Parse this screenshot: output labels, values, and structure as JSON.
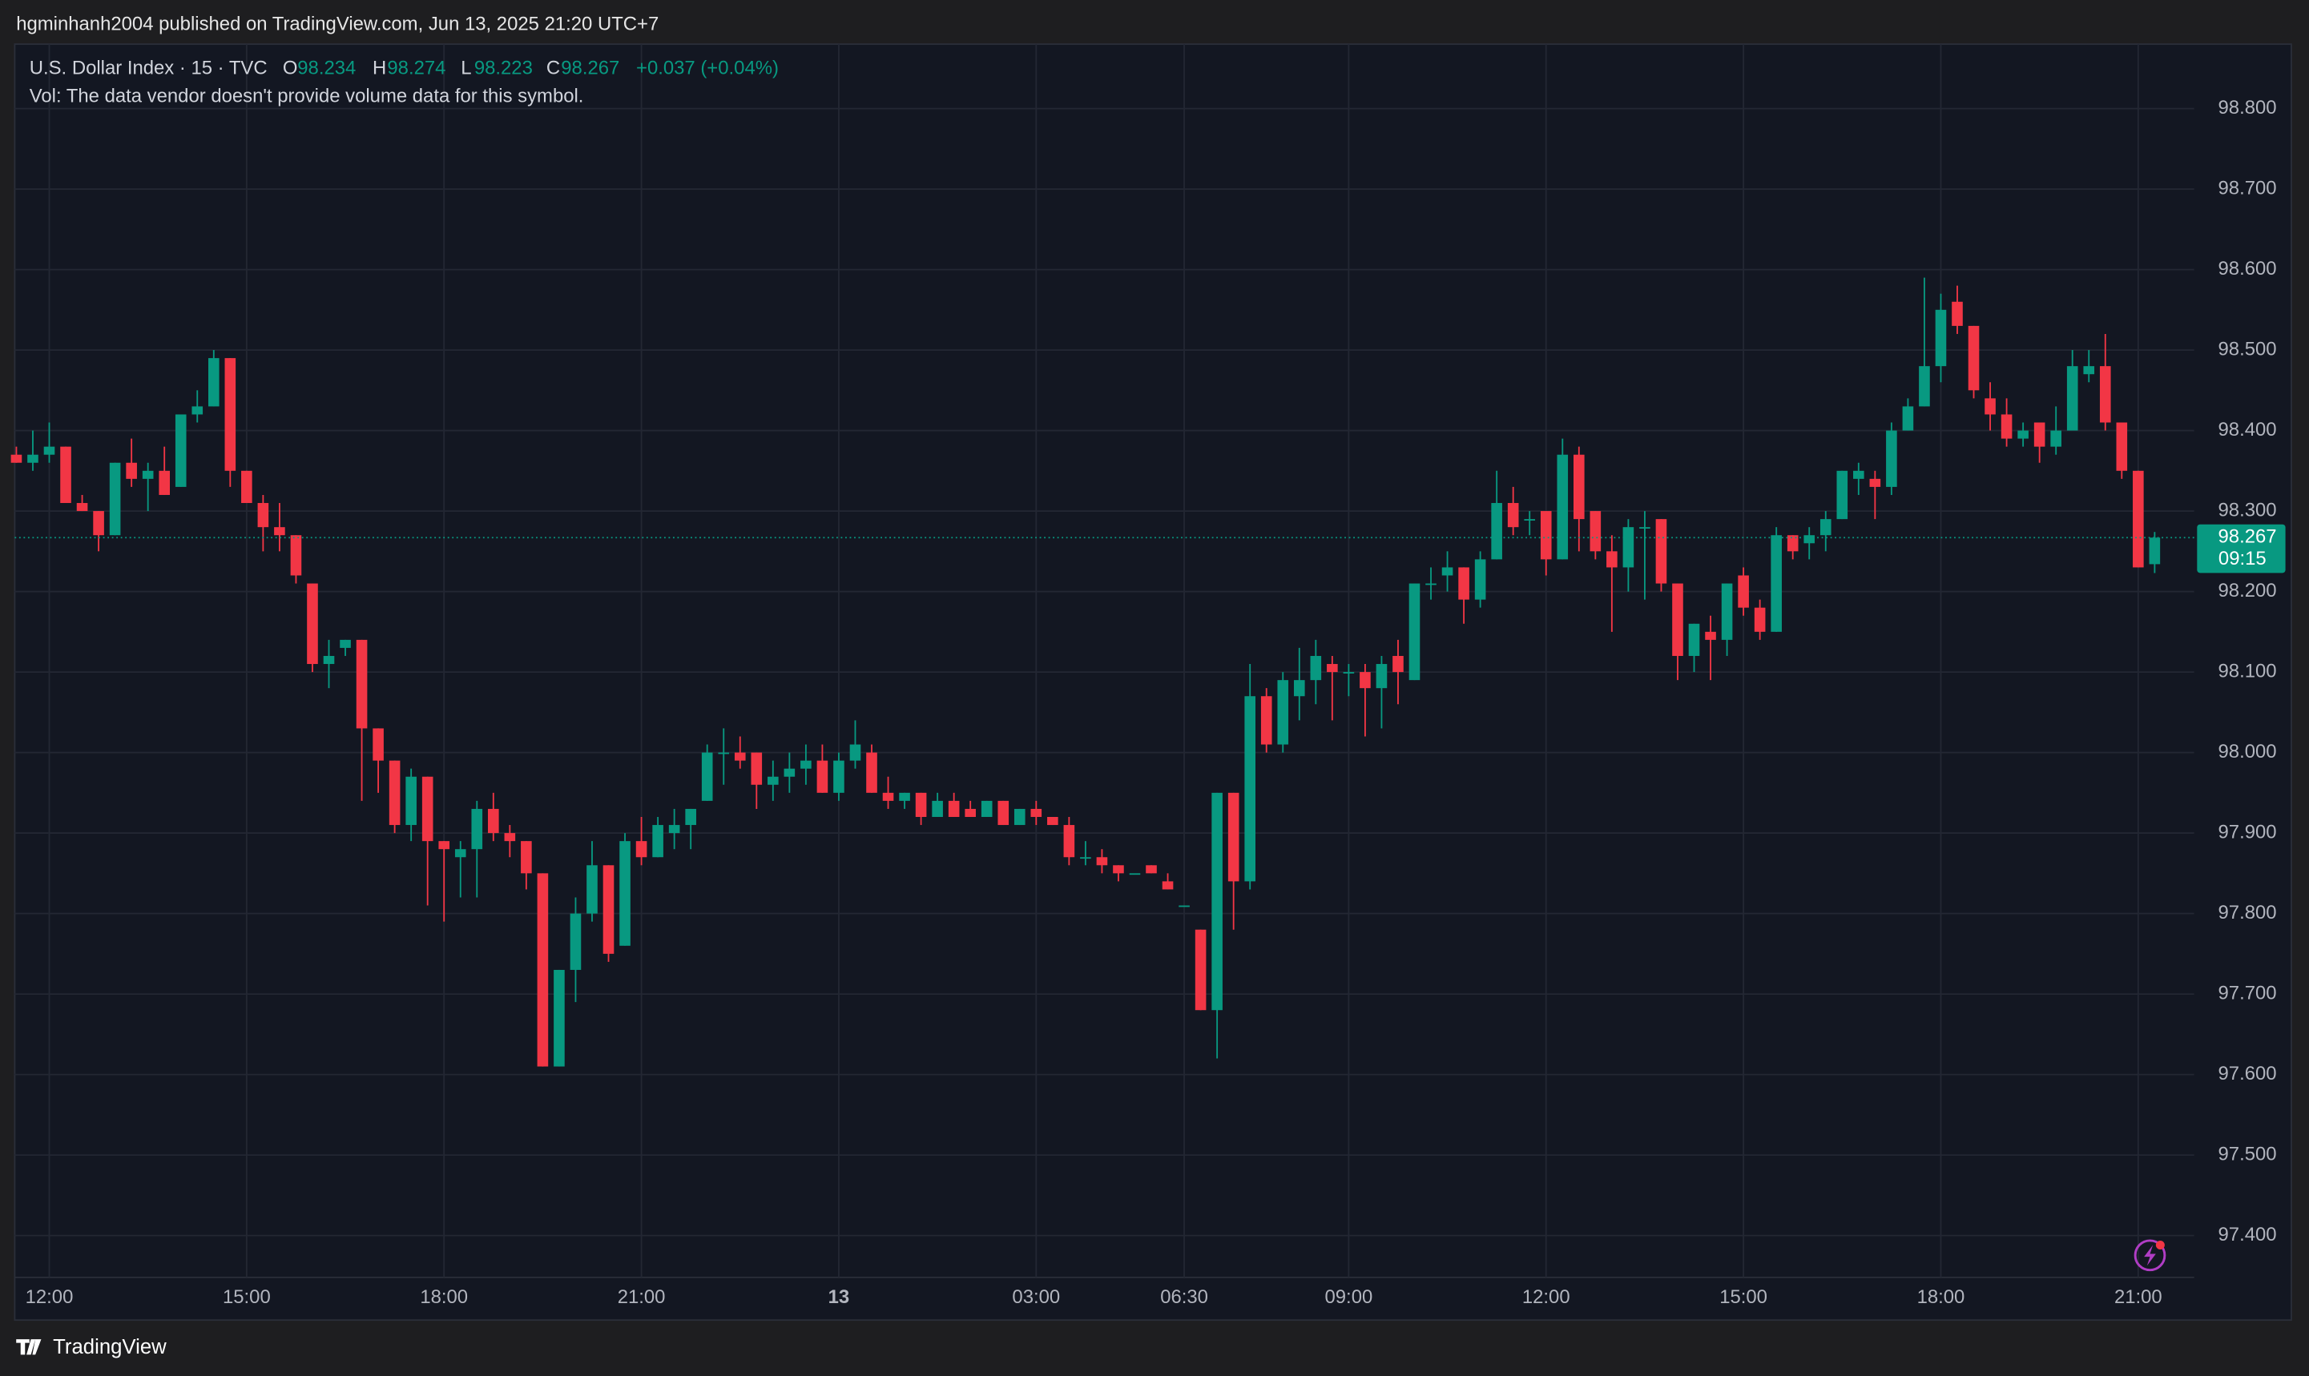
{
  "header": {
    "published": "hgminhanh2004 published on TradingView.com, Jun 13, 2025 21:20 UTC+7"
  },
  "footer": {
    "brand": "TradingView"
  },
  "chart_data": {
    "type": "candlestick",
    "title": "U.S. Dollar Index · 15 · TVC",
    "legend": [
      {
        "key": "O",
        "value": "98.234"
      },
      {
        "key": "H",
        "value": "98.274"
      },
      {
        "key": "L",
        "value": "98.223"
      },
      {
        "key": "C",
        "value": "98.267"
      }
    ],
    "change": "+0.037 (+0.04%)",
    "volume_note": "Vol: The data vendor doesn't provide volume data for this symbol.",
    "up_color": "#089981",
    "down_color": "#f23645",
    "open": [
      98.37,
      98.36,
      98.37,
      98.38,
      98.31,
      98.3,
      98.27,
      98.36,
      98.34,
      98.35,
      98.33,
      98.42,
      98.43,
      98.49,
      98.35,
      98.31,
      98.28,
      98.27,
      98.21,
      98.11,
      98.13,
      98.14,
      98.03,
      97.99,
      97.91,
      97.97,
      97.89,
      97.87,
      97.88,
      97.93,
      97.9,
      97.89,
      97.85,
      97.61,
      97.73,
      97.8,
      97.86,
      97.76,
      97.89,
      97.87,
      97.9,
      97.91,
      97.94,
      98.0,
      98.0,
      98.0,
      97.96,
      97.97,
      97.98,
      97.99,
      97.95,
      97.99,
      98.0,
      97.95,
      97.94,
      97.95,
      97.92,
      97.94,
      97.93,
      97.92,
      97.94,
      97.91,
      97.93,
      97.92,
      97.91,
      97.87,
      97.87,
      97.86,
      97.85,
      97.86,
      97.84,
      97.81,
      97.78,
      97.68,
      97.95,
      97.84,
      98.07,
      98.01,
      98.07,
      98.09,
      98.11,
      98.1,
      98.1,
      98.08,
      98.12,
      98.09,
      98.21,
      98.22,
      98.23,
      98.19,
      98.24,
      98.31,
      98.29,
      98.3,
      98.24,
      98.37,
      98.3,
      98.25,
      98.23,
      98.28,
      98.29,
      98.21,
      98.12,
      98.15,
      98.14,
      98.22,
      98.18,
      98.15,
      98.27,
      98.26,
      98.27,
      98.29,
      98.34,
      98.34,
      98.33,
      98.4,
      98.43,
      98.48,
      98.56,
      98.53,
      98.44,
      98.42,
      98.39,
      98.41,
      98.38,
      98.4,
      98.47,
      98.48,
      98.41,
      98.35,
      98.234
    ],
    "high": [
      98.38,
      98.4,
      98.41,
      98.38,
      98.32,
      98.3,
      98.36,
      98.39,
      98.36,
      98.38,
      98.42,
      98.45,
      98.5,
      98.49,
      98.35,
      98.32,
      98.31,
      98.27,
      98.21,
      98.14,
      98.14,
      98.14,
      98.03,
      97.99,
      97.98,
      97.97,
      97.89,
      97.89,
      97.94,
      97.95,
      97.91,
      97.89,
      97.85,
      97.73,
      97.82,
      97.89,
      97.86,
      97.9,
      97.92,
      97.92,
      97.93,
      97.93,
      98.01,
      98.03,
      98.02,
      98.0,
      97.99,
      98.0,
      98.01,
      98.01,
      98.0,
      98.04,
      98.01,
      97.97,
      97.95,
      97.95,
      97.95,
      97.95,
      97.94,
      97.94,
      97.94,
      97.93,
      97.94,
      97.92,
      97.92,
      97.89,
      97.88,
      97.86,
      97.85,
      97.86,
      97.85,
      97.81,
      97.78,
      97.95,
      97.95,
      98.11,
      98.08,
      98.1,
      98.13,
      98.14,
      98.12,
      98.11,
      98.11,
      98.12,
      98.14,
      98.21,
      98.23,
      98.25,
      98.23,
      98.25,
      98.35,
      98.33,
      98.3,
      98.3,
      98.39,
      98.38,
      98.3,
      98.27,
      98.29,
      98.3,
      98.29,
      98.21,
      98.16,
      98.17,
      98.21,
      98.23,
      98.19,
      98.28,
      98.27,
      98.28,
      98.3,
      98.35,
      98.36,
      98.35,
      98.41,
      98.44,
      98.59,
      98.57,
      98.58,
      98.53,
      98.46,
      98.44,
      98.41,
      98.41,
      98.43,
      98.5,
      98.5,
      98.52,
      98.41,
      98.35,
      98.274
    ],
    "low": [
      98.36,
      98.35,
      98.36,
      98.31,
      98.3,
      98.25,
      98.27,
      98.33,
      98.3,
      98.32,
      98.33,
      98.41,
      98.43,
      98.33,
      98.31,
      98.25,
      98.25,
      98.21,
      98.1,
      98.08,
      98.12,
      97.94,
      97.95,
      97.9,
      97.89,
      97.81,
      97.79,
      97.82,
      97.82,
      97.89,
      97.87,
      97.83,
      97.61,
      97.61,
      97.69,
      97.79,
      97.74,
      97.76,
      97.86,
      97.87,
      97.88,
      97.88,
      97.94,
      97.96,
      97.98,
      97.93,
      97.94,
      97.95,
      97.96,
      97.95,
      97.94,
      97.98,
      97.95,
      97.93,
      97.93,
      97.91,
      97.92,
      97.92,
      97.92,
      97.92,
      97.91,
      97.91,
      97.91,
      97.91,
      97.86,
      97.86,
      97.85,
      97.84,
      97.85,
      97.85,
      97.83,
      97.81,
      97.68,
      97.62,
      97.78,
      97.83,
      98.0,
      98.0,
      98.04,
      98.06,
      98.04,
      98.07,
      98.02,
      98.03,
      98.06,
      98.09,
      98.19,
      98.2,
      98.16,
      98.18,
      98.24,
      98.27,
      98.27,
      98.22,
      98.24,
      98.25,
      98.24,
      98.15,
      98.2,
      98.19,
      98.2,
      98.09,
      98.1,
      98.09,
      98.12,
      98.17,
      98.14,
      98.15,
      98.24,
      98.24,
      98.25,
      98.29,
      98.32,
      98.29,
      98.32,
      98.4,
      98.43,
      98.46,
      98.52,
      98.44,
      98.4,
      98.38,
      98.38,
      98.36,
      98.37,
      98.4,
      98.46,
      98.4,
      98.34,
      98.23,
      98.223
    ],
    "close": [
      98.36,
      98.37,
      98.38,
      98.31,
      98.3,
      98.27,
      98.36,
      98.34,
      98.35,
      98.32,
      98.42,
      98.43,
      98.49,
      98.35,
      98.31,
      98.28,
      98.27,
      98.22,
      98.11,
      98.12,
      98.14,
      98.03,
      97.99,
      97.91,
      97.97,
      97.89,
      97.88,
      97.88,
      97.93,
      97.9,
      97.89,
      97.85,
      97.61,
      97.73,
      97.8,
      97.86,
      97.75,
      97.89,
      97.87,
      97.91,
      97.91,
      97.93,
      98.0,
      98.0,
      97.99,
      97.96,
      97.97,
      97.98,
      97.99,
      97.95,
      97.99,
      98.01,
      97.95,
      97.94,
      97.95,
      97.92,
      97.94,
      97.92,
      97.92,
      97.94,
      97.91,
      97.93,
      97.92,
      97.91,
      97.87,
      97.87,
      97.86,
      97.85,
      97.85,
      97.85,
      97.83,
      97.81,
      97.68,
      97.95,
      97.84,
      98.07,
      98.01,
      98.09,
      98.09,
      98.12,
      98.1,
      98.1,
      98.08,
      98.11,
      98.1,
      98.21,
      98.21,
      98.23,
      98.19,
      98.24,
      98.31,
      98.28,
      98.29,
      98.24,
      98.37,
      98.29,
      98.25,
      98.23,
      98.28,
      98.28,
      98.21,
      98.12,
      98.16,
      98.14,
      98.21,
      98.18,
      98.15,
      98.27,
      98.25,
      98.27,
      98.29,
      98.35,
      98.35,
      98.33,
      98.4,
      98.43,
      98.48,
      98.55,
      98.53,
      98.45,
      98.42,
      98.39,
      98.4,
      98.38,
      98.4,
      98.48,
      98.48,
      98.41,
      98.35,
      98.23,
      98.267
    ],
    "last_price": 98.267,
    "countdown": "09:15",
    "xlim": [
      -0.1,
      132.4
    ],
    "xticks": [
      {
        "value": 2,
        "label": "12:00"
      },
      {
        "value": 14,
        "label": "15:00"
      },
      {
        "value": 26,
        "label": "18:00"
      },
      {
        "value": 38,
        "label": "21:00"
      },
      {
        "value": 50,
        "label": "13",
        "bold": true
      },
      {
        "value": 62,
        "label": "03:00"
      },
      {
        "value": 71,
        "label": "06:30"
      },
      {
        "value": 81,
        "label": "09:00"
      },
      {
        "value": 93,
        "label": "12:00"
      },
      {
        "value": 105,
        "label": "15:00"
      },
      {
        "value": 117,
        "label": "18:00"
      },
      {
        "value": 129,
        "label": "21:00"
      }
    ],
    "ylim": [
      97.348,
      98.88
    ],
    "yticks": [
      {
        "value": 97.4,
        "label": "97.400"
      },
      {
        "value": 97.5,
        "label": "97.500"
      },
      {
        "value": 97.6,
        "label": "97.600"
      },
      {
        "value": 97.7,
        "label": "97.700"
      },
      {
        "value": 97.8,
        "label": "97.800"
      },
      {
        "value": 97.9,
        "label": "97.900"
      },
      {
        "value": 98.0,
        "label": "98.000"
      },
      {
        "value": 98.1,
        "label": "98.100"
      },
      {
        "value": 98.2,
        "label": "98.200"
      },
      {
        "value": 98.3,
        "label": "98.300"
      },
      {
        "value": 98.4,
        "label": "98.400"
      },
      {
        "value": 98.5,
        "label": "98.500"
      },
      {
        "value": 98.6,
        "label": "98.600"
      },
      {
        "value": 98.7,
        "label": "98.700"
      },
      {
        "value": 98.8,
        "label": "98.800"
      }
    ],
    "grid": true
  }
}
